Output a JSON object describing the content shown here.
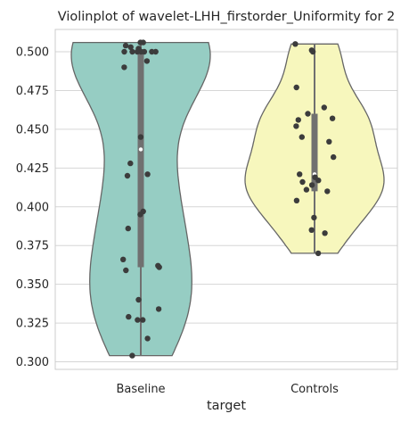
{
  "chart_data": {
    "type": "violin",
    "title": "Violinplot of wavelet-LHH_firstorder_Uniformity for 2",
    "xlabel": "target",
    "ylabel": "",
    "categories": [
      "Baseline",
      "Controls"
    ],
    "ylim": [
      0.295,
      0.515
    ],
    "yticks": [
      "0.300",
      "0.325",
      "0.350",
      "0.375",
      "0.400",
      "0.425",
      "0.450",
      "0.475",
      "0.500"
    ],
    "grid": true,
    "colors": {
      "Baseline": "#96cdc3",
      "Controls": "#f7f7bd",
      "outline": "#666666",
      "points": "#3c3c3c",
      "grid": "#d6d6d6",
      "inner_box": "#707070",
      "median": "#ffffff"
    },
    "series": [
      {
        "category": "Baseline",
        "range": [
          0.304,
          0.506
        ],
        "quartiles": [
          0.361,
          0.437,
          0.5
        ],
        "points": [
          0.506,
          0.506,
          0.504,
          0.503,
          0.502,
          0.5,
          0.5,
          0.5,
          0.5,
          0.5,
          0.5,
          0.5,
          0.494,
          0.49,
          0.445,
          0.428,
          0.421,
          0.42,
          0.397,
          0.395,
          0.386,
          0.366,
          0.362,
          0.361,
          0.359,
          0.34,
          0.334,
          0.329,
          0.327,
          0.327,
          0.315,
          0.304
        ]
      },
      {
        "category": "Controls",
        "range": [
          0.37,
          0.505
        ],
        "quartiles": [
          0.41,
          0.421,
          0.46
        ],
        "points": [
          0.505,
          0.501,
          0.5,
          0.477,
          0.464,
          0.46,
          0.457,
          0.456,
          0.452,
          0.445,
          0.442,
          0.432,
          0.421,
          0.419,
          0.417,
          0.416,
          0.414,
          0.411,
          0.41,
          0.404,
          0.393,
          0.385,
          0.383,
          0.37
        ]
      }
    ]
  }
}
